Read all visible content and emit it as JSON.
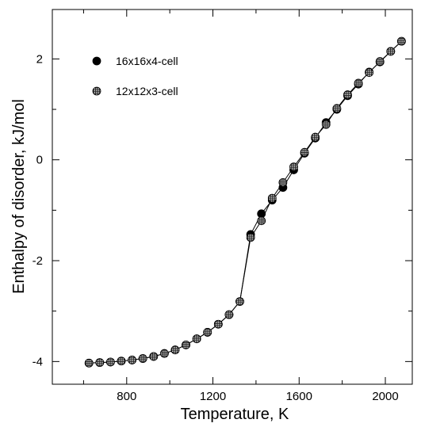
{
  "chart_data": {
    "type": "line",
    "xlabel": "Temperature, K",
    "ylabel": "Enthalpy of disorder, kJ/mol",
    "xlim": [
      455,
      2125
    ],
    "ylim": [
      -4.45,
      2.98
    ],
    "xticks": [
      800,
      1200,
      1600,
      2000
    ],
    "yticks": [
      -4,
      -2,
      0,
      2
    ],
    "grid": false,
    "legend_position": "top-left",
    "series": [
      {
        "name": "16x16x4-cell",
        "marker": "filled-circle",
        "color": "#000000",
        "x": [
          625,
          675,
          725,
          775,
          825,
          875,
          925,
          975,
          1025,
          1075,
          1125,
          1175,
          1225,
          1275,
          1325,
          1375,
          1425,
          1475,
          1525,
          1575,
          1625,
          1675,
          1725,
          1775,
          1825,
          1875,
          1925,
          1975,
          2025,
          2075
        ],
        "y": [
          -4.03,
          -4.02,
          -4.01,
          -3.99,
          -3.97,
          -3.94,
          -3.9,
          -3.84,
          -3.77,
          -3.67,
          -3.55,
          -3.42,
          -3.26,
          -3.07,
          -2.81,
          -1.48,
          -1.07,
          -0.8,
          -0.55,
          -0.2,
          0.13,
          0.43,
          0.74,
          1.0,
          1.27,
          1.5,
          1.74,
          1.94,
          2.15,
          2.35
        ]
      },
      {
        "name": "12x12x3-cell",
        "marker": "hatched-circle",
        "color": "#000000",
        "x": [
          625,
          675,
          725,
          775,
          825,
          875,
          925,
          975,
          1025,
          1075,
          1125,
          1175,
          1225,
          1275,
          1325,
          1375,
          1425,
          1475,
          1525,
          1575,
          1625,
          1675,
          1725,
          1775,
          1825,
          1875,
          1925,
          1975,
          2025,
          2075
        ],
        "y": [
          -4.03,
          -4.02,
          -4.01,
          -3.99,
          -3.97,
          -3.94,
          -3.9,
          -3.84,
          -3.77,
          -3.67,
          -3.55,
          -3.42,
          -3.26,
          -3.07,
          -2.81,
          -1.54,
          -1.21,
          -0.76,
          -0.45,
          -0.14,
          0.15,
          0.45,
          0.7,
          1.02,
          1.29,
          1.52,
          1.73,
          1.95,
          2.15,
          2.35
        ]
      }
    ]
  }
}
